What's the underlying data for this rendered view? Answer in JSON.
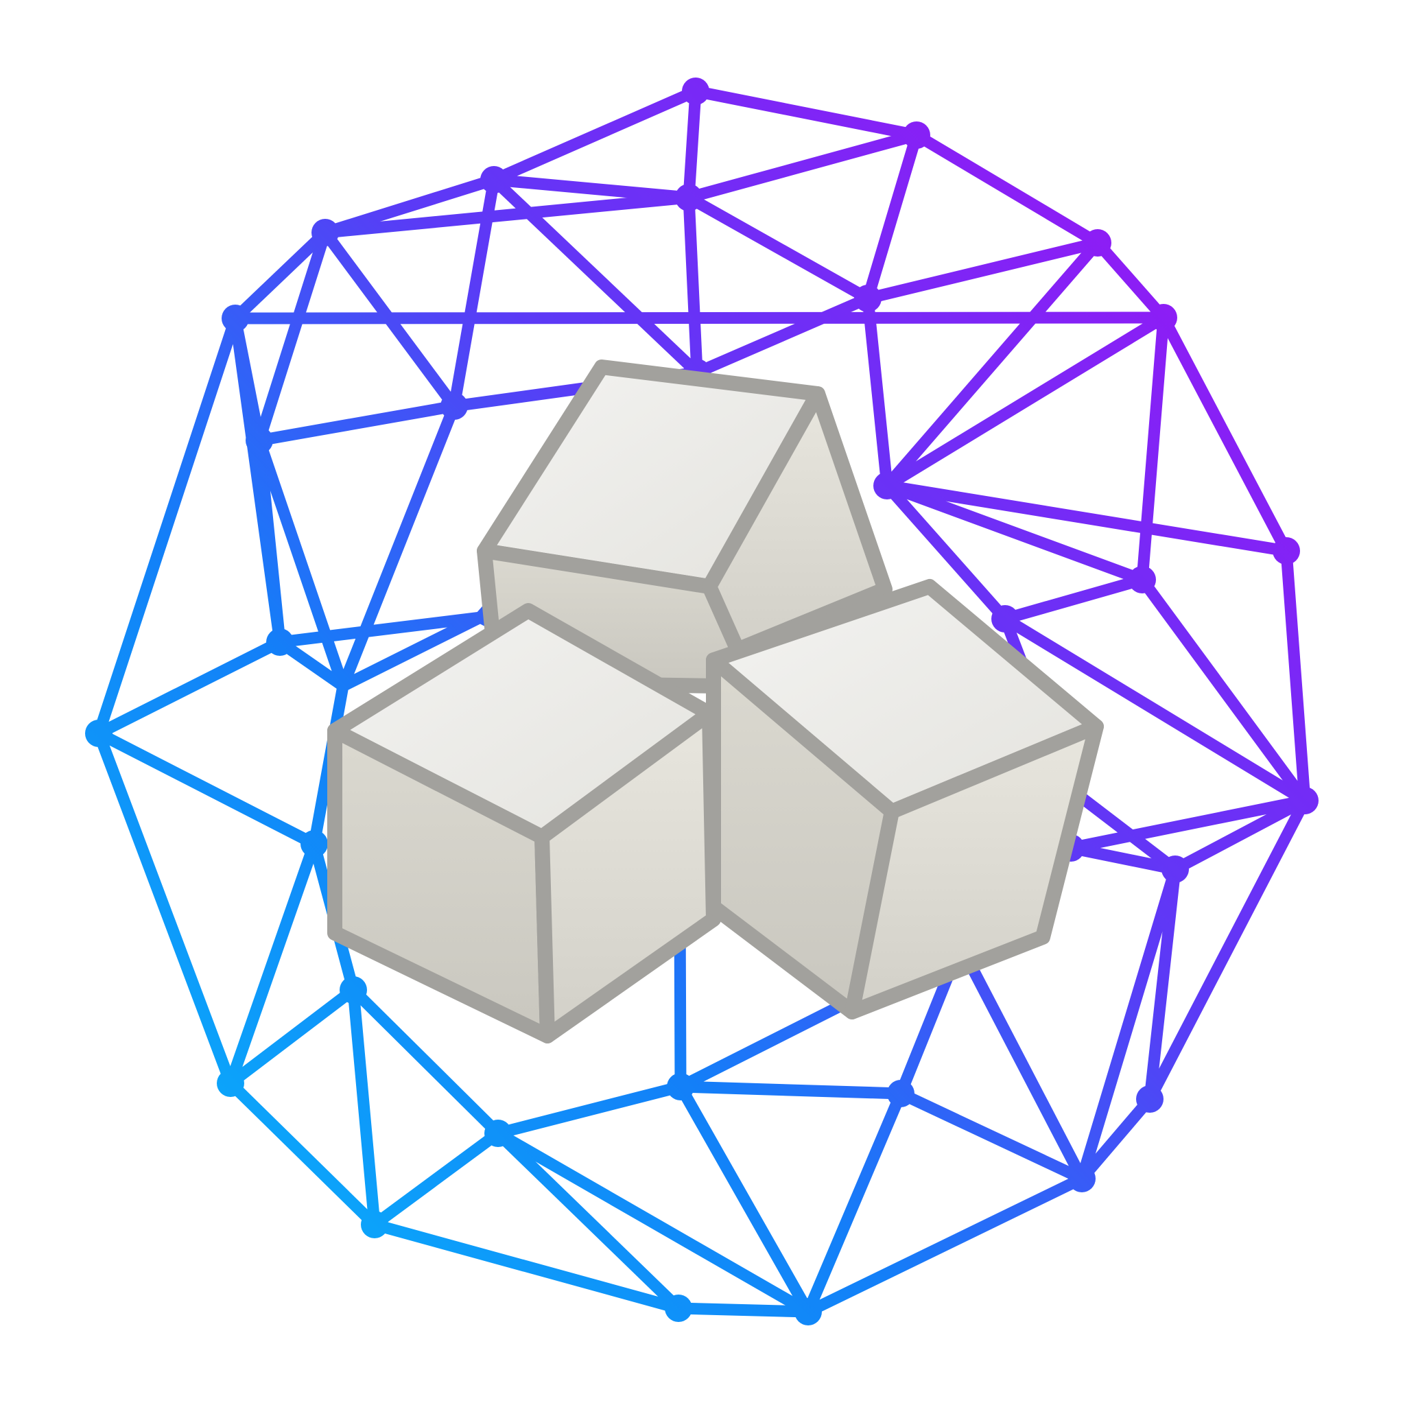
{
  "logo": {
    "description_icon": "sugar-cubes-on-network-icon",
    "colors": {
      "mesh_top": "#a012f5",
      "mesh_mid": "#5b3af6",
      "mesh_left": "#137ff8",
      "mesh_bottom": "#08b4fb",
      "cube_outline": "#a2a19d",
      "cube_top_face": "#ededea",
      "cube_left_face": "#dcdad2",
      "cube_right_face": "#e2e0d8",
      "background": "#ffffff"
    }
  }
}
